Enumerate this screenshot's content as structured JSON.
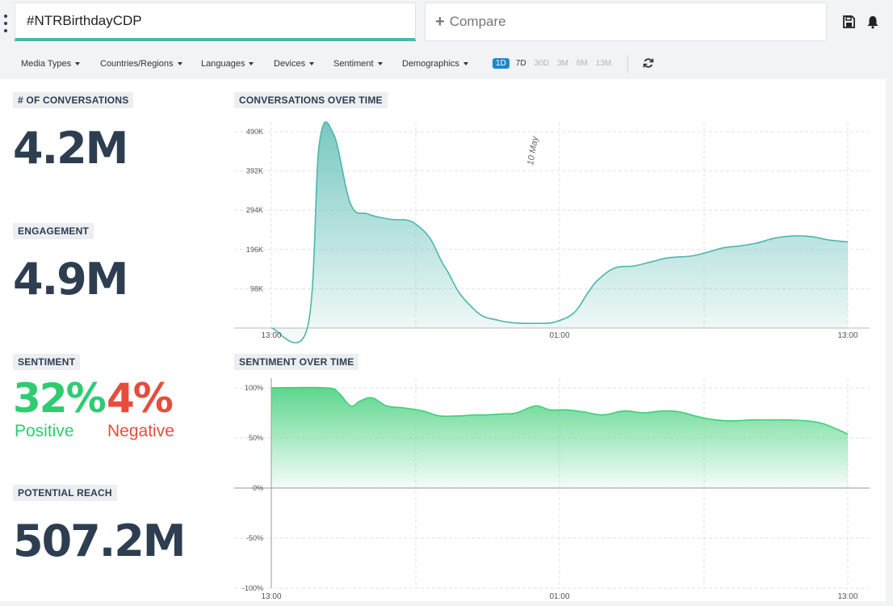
{
  "topbar": {
    "query": "#NTRBirthdayCDP",
    "compare_placeholder": "Compare",
    "icons": [
      "kebab-menu-icon",
      "save-icon",
      "bell-icon"
    ]
  },
  "filters": {
    "items": [
      "Media Types",
      "Countries/Regions",
      "Languages",
      "Devices",
      "Sentiment",
      "Demographics"
    ],
    "ranges": [
      "1D",
      "7D",
      "30D",
      "3M",
      "6M",
      "13M"
    ],
    "active_range": "1D"
  },
  "stats": {
    "conversations_label": "# OF CONVERSATIONS",
    "conversations_value": "4.2M",
    "engagement_label": "ENGAGEMENT",
    "engagement_value": "4.9M",
    "sentiment_label": "SENTIMENT",
    "positive_value": "32%",
    "positive_label": "Positive",
    "negative_value": "4%",
    "negative_label": "Negative",
    "reach_label": "POTENTIAL REACH",
    "reach_value": "507.2M"
  },
  "colors": {
    "accent": "#4db6ac",
    "conversation_line": "#4db6ac",
    "sentiment_line": "#3fcf78",
    "positive": "#2ecc71",
    "negative": "#e74c3c",
    "active_range": "#1e88c8"
  },
  "chart_data": [
    {
      "type": "area",
      "title": "CONVERSATIONS OVER TIME",
      "x": [
        0,
        1.5,
        2.0,
        2.6,
        3.3,
        4.0,
        4.8,
        5.3,
        5.6,
        6.0,
        6.6,
        7.1,
        7.4,
        7.8,
        8.3,
        8.8,
        9.4,
        9.8,
        10.4,
        11.2,
        11.8,
        12.6,
        13.2,
        13.6,
        14.3,
        15.1,
        15.8,
        16.5,
        17.5,
        18.2,
        18.8,
        19.5,
        20.2,
        21.0,
        21.8,
        22.5,
        23.2,
        24.0
      ],
      "values": [
        0,
        0,
        460,
        483,
        310,
        285,
        273,
        270,
        270,
        260,
        225,
        165,
        135,
        90,
        55,
        30,
        20,
        15,
        12,
        12,
        15,
        38,
        90,
        120,
        150,
        155,
        165,
        175,
        180,
        190,
        200,
        205,
        212,
        225,
        230,
        228,
        220,
        215
      ],
      "x_ticks": [
        "13:00",
        "01:00",
        "13:00"
      ],
      "y_ticks": [
        "98K",
        "196K",
        "294K",
        "392K",
        "490K"
      ],
      "ylim": [
        0,
        490
      ],
      "annotation": "10 May",
      "grid": true,
      "legend": "none"
    },
    {
      "type": "area",
      "title": "SENTIMENT OVER TIME",
      "x": [
        0,
        2.3,
        2.8,
        3.3,
        3.7,
        4.2,
        4.8,
        5.5,
        6.3,
        7.0,
        7.8,
        8.5,
        9.0,
        9.6,
        10.2,
        11.0,
        11.6,
        12.3,
        13.0,
        13.8,
        14.7,
        15.5,
        16.3,
        17.0,
        17.8,
        18.5,
        19.2,
        20.0,
        20.8,
        21.5,
        22.3,
        23.0,
        24.0
      ],
      "values": [
        100,
        100,
        95,
        82,
        87,
        90,
        82,
        80,
        77,
        72,
        72,
        73,
        73,
        74,
        75,
        82,
        78,
        78,
        76,
        73,
        77,
        75,
        77,
        76,
        71,
        68,
        67,
        68,
        68,
        68,
        67,
        64,
        54
      ],
      "x_ticks": [
        "13:00",
        "01:00",
        "13:00"
      ],
      "y_ticks": [
        "-100%",
        "-50%",
        "0%",
        "50%",
        "100%"
      ],
      "ylim": [
        -100,
        100
      ],
      "grid": true,
      "legend": "none"
    }
  ]
}
